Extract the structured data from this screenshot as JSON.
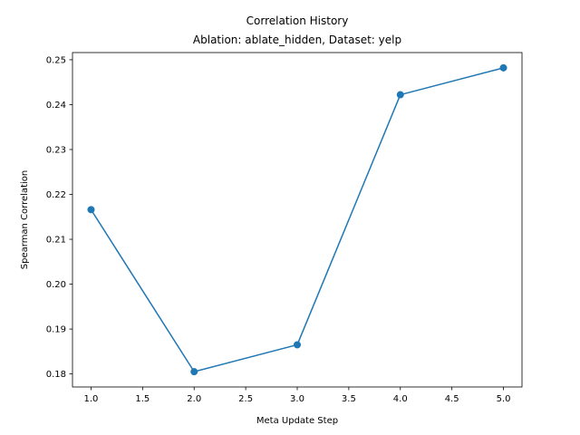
{
  "chart_data": {
    "type": "line",
    "title": "Correlation History",
    "subtitle": "Ablation: ablate_hidden, Dataset: yelp",
    "xlabel": "Meta Update Step",
    "ylabel": "Spearman Correlation",
    "x": [
      1.0,
      2.0,
      3.0,
      4.0,
      5.0
    ],
    "series": [
      {
        "values": [
          0.2166,
          0.1805,
          0.1865,
          0.2422,
          0.2482
        ]
      }
    ],
    "xlim": [
      0.82,
      5.18
    ],
    "ylim": [
      0.1771,
      0.2516
    ],
    "xticks": [
      1.0,
      1.5,
      2.0,
      2.5,
      3.0,
      3.5,
      4.0,
      4.5,
      5.0
    ],
    "xtick_labels": [
      "1.0",
      "1.5",
      "2.0",
      "2.5",
      "3.0",
      "3.5",
      "4.0",
      "4.5",
      "5.0"
    ],
    "yticks": [
      0.18,
      0.19,
      0.2,
      0.21,
      0.22,
      0.23,
      0.24,
      0.25
    ],
    "ytick_labels": [
      "0.18",
      "0.19",
      "0.20",
      "0.21",
      "0.22",
      "0.23",
      "0.24",
      "0.25"
    ],
    "grid": false,
    "legend": false,
    "line_color": "#1f77b4",
    "marker": "circle"
  }
}
